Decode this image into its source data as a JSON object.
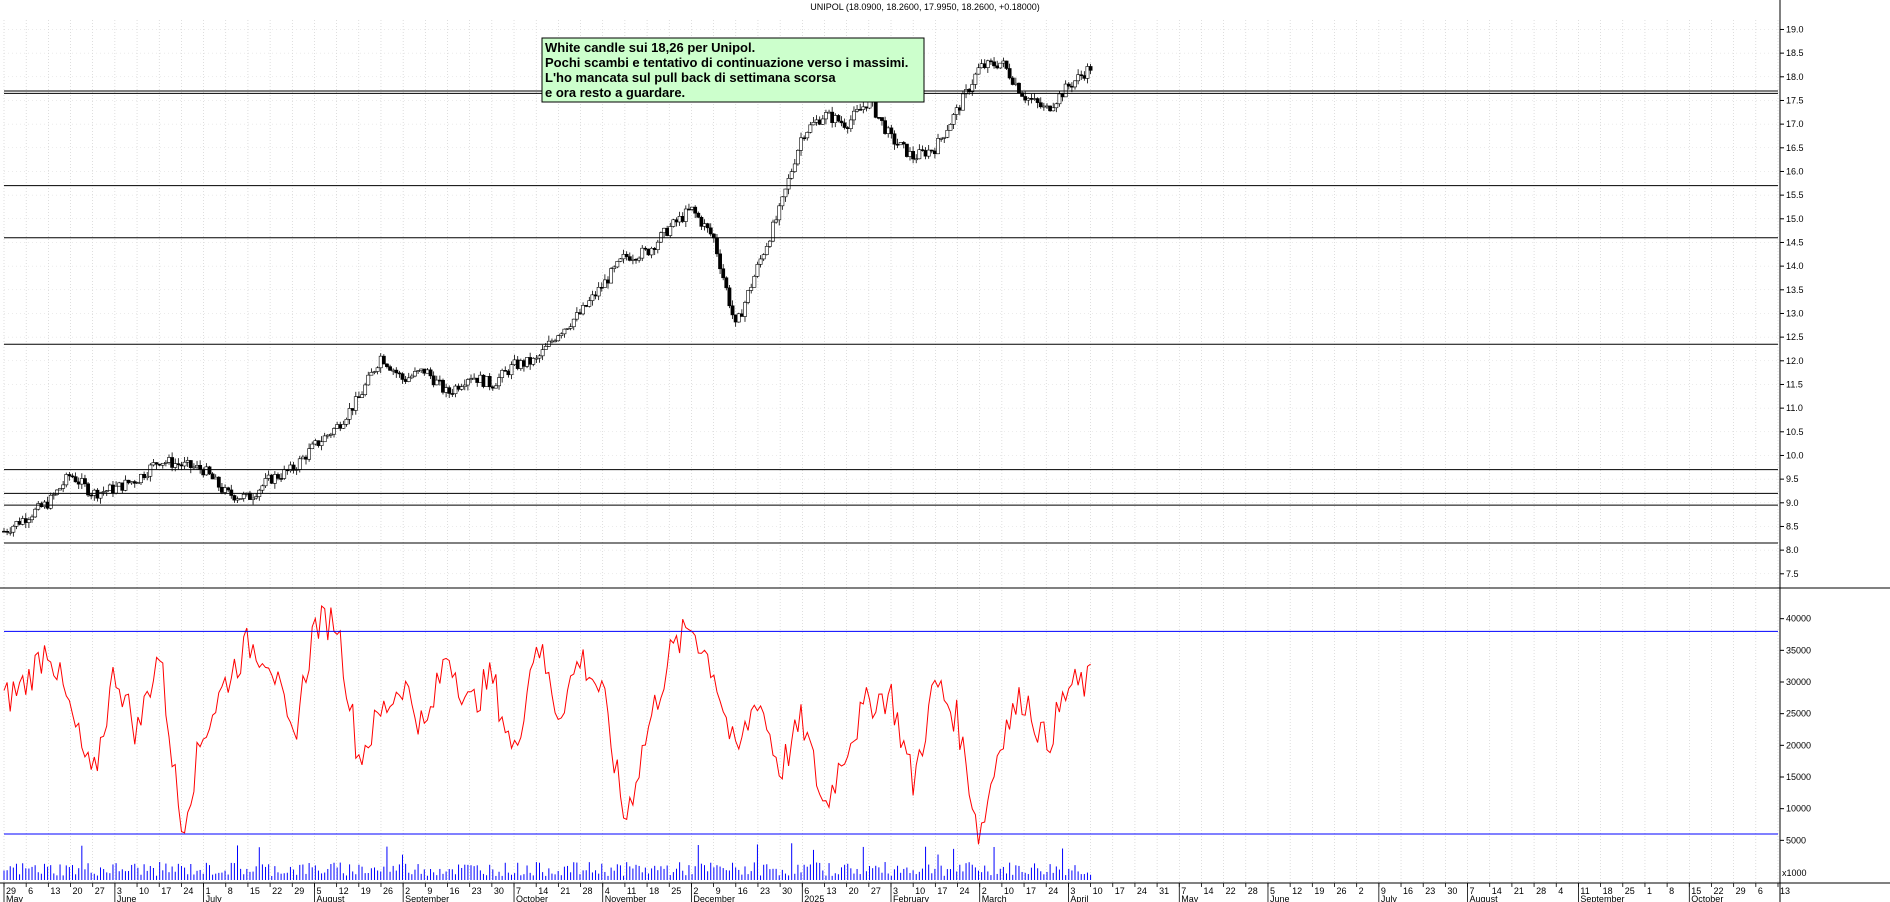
{
  "chart_data": {
    "type": "candlestick",
    "title": "UNIPOL (18.0900, 18.2600, 17.9950, 18.2600, +0.18000)",
    "annotation": [
      "White candle sui 18,26 per Unipol.",
      "Pochi scambi e tentativo di continuazione verso i massimi.",
      "L'ho mancata sul pull back di settimana scorsa",
      "e ora resto a guardare."
    ],
    "price_axis": {
      "ylim": [
        7.2,
        19.2
      ],
      "ticks": [
        "7.5",
        "8.0",
        "8.5",
        "9.0",
        "9.5",
        "10.0",
        "10.5",
        "11.0",
        "11.5",
        "12.0",
        "12.5",
        "13.0",
        "13.5",
        "14.0",
        "14.5",
        "15.0",
        "15.5",
        "16.0",
        "16.5",
        "17.0",
        "17.5",
        "18.0",
        "18.5",
        "19.0"
      ]
    },
    "oscillator_axis": {
      "ylim": [
        0,
        42000
      ],
      "ticks": [
        "5000",
        "10000",
        "15000",
        "20000",
        "25000",
        "30000",
        "35000",
        "40000"
      ]
    },
    "volume_axis": {
      "label": "x1000"
    },
    "x_axis": {
      "day_ticks": [
        "29",
        "6",
        "13",
        "20",
        "27",
        "3",
        "10",
        "17",
        "24",
        "1",
        "8",
        "15",
        "22",
        "29",
        "5",
        "12",
        "19",
        "26",
        "2",
        "9",
        "16",
        "23",
        "30",
        "7",
        "14",
        "21",
        "28",
        "4",
        "11",
        "18",
        "25",
        "2",
        "9",
        "16",
        "23",
        "30",
        "6",
        "13",
        "20",
        "27",
        "3",
        "10",
        "17",
        "24",
        "2",
        "10",
        "17",
        "24",
        "3",
        "10",
        "17",
        "24",
        "31",
        "7",
        "14",
        "22",
        "28",
        "5",
        "12",
        "19",
        "26",
        "2",
        "9",
        "16",
        "23",
        "30",
        "7",
        "14",
        "21",
        "28",
        "4",
        "11",
        "18",
        "25",
        "1",
        "8",
        "15",
        "22",
        "29",
        "6",
        "13"
      ],
      "months": [
        {
          "label": "May",
          "at": 0
        },
        {
          "label": "June",
          "at": 5
        },
        {
          "label": "July",
          "at": 9
        },
        {
          "label": "August",
          "at": 14
        },
        {
          "label": "September",
          "at": 18
        },
        {
          "label": "October",
          "at": 23
        },
        {
          "label": "November",
          "at": 27
        },
        {
          "label": "December",
          "at": 31
        },
        {
          "label": "2025",
          "at": 36
        },
        {
          "label": "February",
          "at": 40
        },
        {
          "label": "March",
          "at": 44
        },
        {
          "label": "April",
          "at": 48
        },
        {
          "label": "May",
          "at": 53
        },
        {
          "label": "June",
          "at": 57
        },
        {
          "label": "July",
          "at": 62
        },
        {
          "label": "August",
          "at": 66
        },
        {
          "label": "September",
          "at": 71
        },
        {
          "label": "October",
          "at": 76
        }
      ]
    },
    "price_anchors": [
      [
        0,
        8.4
      ],
      [
        2,
        9.0
      ],
      [
        3,
        9.6
      ],
      [
        4,
        9.2
      ],
      [
        5,
        9.3
      ],
      [
        6,
        9.5
      ],
      [
        7,
        9.9
      ],
      [
        9,
        9.7
      ],
      [
        10,
        9.2
      ],
      [
        11,
        9.1
      ],
      [
        12,
        9.5
      ],
      [
        13,
        9.7
      ],
      [
        14,
        10.2
      ],
      [
        15,
        10.6
      ],
      [
        16,
        11.2
      ],
      [
        17,
        12.1
      ],
      [
        18,
        11.6
      ],
      [
        19,
        11.8
      ],
      [
        20,
        11.3
      ],
      [
        21,
        11.7
      ],
      [
        22,
        11.5
      ],
      [
        23,
        11.9
      ],
      [
        24,
        12.0
      ],
      [
        25,
        12.6
      ],
      [
        26,
        13.0
      ],
      [
        27,
        13.6
      ],
      [
        28,
        14.2
      ],
      [
        29,
        14.3
      ],
      [
        30,
        14.8
      ],
      [
        31,
        15.2
      ],
      [
        32,
        14.6
      ],
      [
        33,
        12.7
      ],
      [
        34,
        14.0
      ],
      [
        35,
        15.2
      ],
      [
        36,
        16.8
      ],
      [
        37,
        17.2
      ],
      [
        38,
        17.0
      ],
      [
        39,
        17.5
      ],
      [
        40,
        16.7
      ],
      [
        41,
        16.3
      ],
      [
        42,
        16.5
      ],
      [
        43,
        17.3
      ],
      [
        44,
        18.2
      ],
      [
        45,
        18.3
      ],
      [
        46,
        17.6
      ],
      [
        47,
        17.3
      ],
      [
        48,
        17.8
      ],
      [
        49,
        18.2
      ]
    ],
    "oscillator_anchors": [
      [
        0,
        27000
      ],
      [
        1,
        30000
      ],
      [
        2,
        36000
      ],
      [
        3,
        25000
      ],
      [
        4,
        14000
      ],
      [
        5,
        32000
      ],
      [
        6,
        22000
      ],
      [
        7,
        35000
      ],
      [
        8,
        7000
      ],
      [
        9,
        22000
      ],
      [
        10,
        30000
      ],
      [
        11,
        36000
      ],
      [
        12,
        34000
      ],
      [
        13,
        20000
      ],
      [
        14,
        39000
      ],
      [
        15,
        40000
      ],
      [
        16,
        18000
      ],
      [
        17,
        25000
      ],
      [
        18,
        30000
      ],
      [
        19,
        22000
      ],
      [
        20,
        35000
      ],
      [
        21,
        26000
      ],
      [
        22,
        31000
      ],
      [
        23,
        18000
      ],
      [
        24,
        37000
      ],
      [
        25,
        25000
      ],
      [
        26,
        34000
      ],
      [
        27,
        28000
      ],
      [
        28,
        8000
      ],
      [
        29,
        22000
      ],
      [
        30,
        34000
      ],
      [
        31,
        39000
      ],
      [
        32,
        32000
      ],
      [
        33,
        18000
      ],
      [
        34,
        28000
      ],
      [
        35,
        16000
      ],
      [
        36,
        24000
      ],
      [
        37,
        10000
      ],
      [
        38,
        20000
      ],
      [
        39,
        27000
      ],
      [
        40,
        28000
      ],
      [
        41,
        14000
      ],
      [
        42,
        30000
      ],
      [
        43,
        24000
      ],
      [
        44,
        5500
      ],
      [
        45,
        22000
      ],
      [
        46,
        28000
      ],
      [
        47,
        20000
      ],
      [
        48,
        29000
      ],
      [
        49,
        30000
      ]
    ],
    "hlines_price": [
      8.15,
      8.95,
      9.2,
      9.7,
      12.35,
      14.6,
      15.7,
      17.65,
      17.7
    ],
    "hlines_oscillator": [
      38000,
      6000
    ]
  }
}
